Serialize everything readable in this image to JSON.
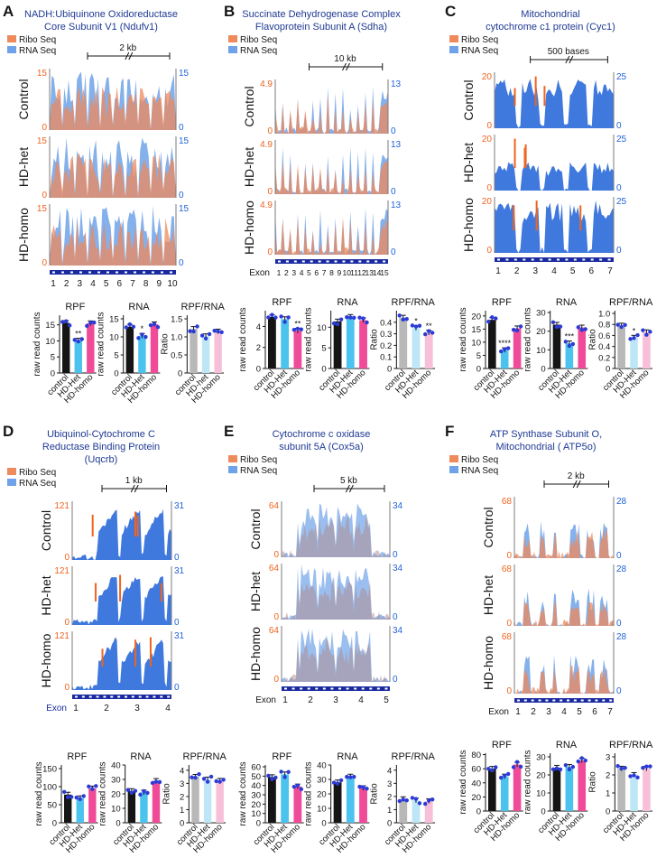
{
  "legend": {
    "ribo": "Ribo Seq",
    "rna": "RNA Seq"
  },
  "colors": {
    "ribo": "#ee8a5c",
    "rna": "#6fa2e8",
    "rna_dark": "#1f62d8",
    "ribo_dark": "#ef6420",
    "title": "#1f3a93",
    "black": "#151515",
    "gray": "#7b7b7b",
    "cyan": "#4cc2ef",
    "pink": "#f04b98",
    "lightpink": "#f7bfd8",
    "lightcyan": "#bde7f7",
    "silver": "#b8b8b8",
    "dot": "#2b3bd6",
    "exon": "#1a2aa0"
  },
  "axis_labels": {
    "raw": "raw read counts",
    "ratio": "Ratio",
    "exon": "Exon"
  },
  "panels": [
    {
      "letter": "A",
      "title": [
        "NADH:Ubiquinone Oxidoreductase",
        "Core Subunit V1  (Ndufv1)"
      ],
      "scale": "2 kb",
      "conditions": [
        "Control",
        "HD-het",
        "HD-homo"
      ],
      "left_axis": {
        "top": "15",
        "bottom": "0"
      },
      "right_axis": {
        "top": "15",
        "bottom": "0"
      },
      "exons": [
        "1",
        "2",
        "3",
        "4",
        "5",
        "6",
        "7",
        "8",
        "9",
        "10"
      ],
      "track_style": "spiky-overlap",
      "bars": [
        {
          "title": "RPF",
          "ylabel": "raw read counts",
          "ticks": [
            "0",
            "5",
            "10",
            "15"
          ],
          "ymax": 18,
          "categories": [
            "control",
            "HD-Het",
            "HD-homo"
          ],
          "values": [
            15.6,
            10.1,
            15.5
          ],
          "sig": [
            "",
            "**",
            ""
          ],
          "colorset": "vivid"
        },
        {
          "title": "RNA",
          "ylabel": "raw read counts",
          "ticks": [
            "0",
            "5",
            "10",
            "15"
          ],
          "ymax": 16,
          "categories": [
            "control",
            "HD-Het",
            "HD-homo"
          ],
          "values": [
            12.8,
            10.3,
            13.5
          ],
          "sig": [
            "",
            "*",
            ""
          ],
          "colorset": "vivid"
        },
        {
          "title": "RPF/RNA",
          "ylabel": "Ratio",
          "ticks": [
            "0",
            "0.5",
            "1.0",
            "1.5"
          ],
          "ymax": 1.6,
          "categories": [
            "control",
            "HD-het",
            "HD-homo"
          ],
          "values": [
            1.22,
            1.02,
            1.15
          ],
          "sig": [
            "",
            "",
            ""
          ],
          "colorset": "pastel"
        }
      ]
    },
    {
      "letter": "B",
      "title": [
        "Succinate Dehydrogenase Complex",
        "Flavoprotein Subunit A (Sdha)"
      ],
      "scale": "10 kb",
      "conditions": [
        "Control",
        "HD-het",
        "HD-homo"
      ],
      "left_axis": {
        "top": "4.9",
        "bottom": "0"
      },
      "right_axis": {
        "top": "13",
        "bottom": "0"
      },
      "exons": [
        "1",
        "2",
        "3",
        "4",
        "5",
        "6",
        "7",
        "8",
        "9",
        "10",
        "11",
        "12",
        "13",
        "14",
        "15"
      ],
      "track_style": "thin-lines",
      "bars": [
        {
          "title": "RPF",
          "ylabel": "raw read counts",
          "ticks": [
            "0",
            "2",
            "4"
          ],
          "ymax": 5.5,
          "categories": [
            "control",
            "HD-Het",
            "HD-homo"
          ],
          "values": [
            4.9,
            4.7,
            3.6
          ],
          "sig": [
            "",
            "",
            "**"
          ],
          "colorset": "vivid"
        },
        {
          "title": "RNA",
          "ylabel": "raw read counts",
          "ticks": [
            "0",
            "5",
            "10"
          ],
          "ymax": 14,
          "categories": [
            "control",
            "HD-Het",
            "HD-homo"
          ],
          "values": [
            11.4,
            12.5,
            11.7
          ],
          "sig": [
            "",
            "",
            ""
          ],
          "colorset": "vivid"
        },
        {
          "title": "RPF/RNA",
          "ylabel": "Ratio",
          "ticks": [
            "0",
            "0.1",
            "0.2",
            "0.3",
            "0.4"
          ],
          "ymax": 0.5,
          "categories": [
            "control",
            "HD-Het",
            "HD-homo"
          ],
          "values": [
            0.44,
            0.35,
            0.31
          ],
          "sig": [
            "",
            "*",
            "**"
          ],
          "colorset": "pastel"
        }
      ]
    },
    {
      "letter": "C",
      "title": [
        "Mitochondrial",
        "cytochrome c1 protein (Cyc1)"
      ],
      "scale": "500 bases",
      "conditions": [
        "Control",
        "HD-het",
        "HD-homo"
      ],
      "left_axis": {
        "top": "20",
        "bottom": "0"
      },
      "right_axis": {
        "top": "25",
        "bottom": "0"
      },
      "exons": [
        "1",
        "2",
        "3",
        "4",
        "5",
        "6",
        "7"
      ],
      "track_style": "dense-blocks",
      "bars": [
        {
          "title": "RPF",
          "ylabel": "raw read counts",
          "ticks": [
            "0",
            "5",
            "10",
            "15",
            "20"
          ],
          "ymax": 22,
          "categories": [
            "control",
            "HD-Het",
            "HD-homo"
          ],
          "values": [
            18.5,
            7.0,
            15.3
          ],
          "sig": [
            "",
            "****",
            ""
          ],
          "colorset": "vivid"
        },
        {
          "title": "RNA",
          "ylabel": "raw read counts",
          "ticks": [
            "0",
            "10",
            "20",
            "30"
          ],
          "ymax": 31,
          "categories": [
            "control",
            "HD-Het",
            "HD-homo"
          ],
          "values": [
            23.5,
            13.5,
            22.0
          ],
          "sig": [
            "",
            "***",
            ""
          ],
          "colorset": "vivid"
        },
        {
          "title": "RPF/RNA",
          "ylabel": "Ratio",
          "ticks": [
            "0",
            "0.2",
            "0.4",
            "0.6",
            "0.8",
            "1.0"
          ],
          "ymax": 1.05,
          "categories": [
            "control",
            "HD-Het",
            "HD-homo"
          ],
          "values": [
            0.78,
            0.56,
            0.66
          ],
          "sig": [
            "",
            "*",
            ""
          ],
          "colorset": "pastel"
        }
      ]
    },
    {
      "letter": "D",
      "title": [
        "Ubiquinol-Cytochrome C",
        "Reductase Binding Protein",
        "(Uqcrb)"
      ],
      "scale": "1 kb",
      "conditions": [
        "Control",
        "HD-het",
        "HD-homo"
      ],
      "left_axis": {
        "top": "121",
        "bottom": "0"
      },
      "right_axis": {
        "top": "31",
        "bottom": "0"
      },
      "exons": [
        "1",
        "2",
        "3",
        "4"
      ],
      "track_style": "few-blocks",
      "bars": [
        {
          "title": "RPF",
          "ylabel": "raw read counts",
          "ticks": [
            "0",
            "50",
            "100",
            "150"
          ],
          "ymax": 160,
          "categories": [
            "control",
            "HD-Het",
            "HD-homo"
          ],
          "values": [
            78,
            68,
            95
          ],
          "sig": [
            "",
            "",
            ""
          ],
          "colorset": "vivid"
        },
        {
          "title": "RNA",
          "ylabel": "raw read counts",
          "ticks": [
            "0",
            "10",
            "20",
            "30",
            "40"
          ],
          "ymax": 40,
          "categories": [
            "control",
            "HD-Het",
            "HD-homo"
          ],
          "values": [
            22,
            21,
            29
          ],
          "sig": [
            "",
            "",
            ""
          ],
          "colorset": "vivid"
        },
        {
          "title": "RPF/RNA",
          "ylabel": "Ratio",
          "ticks": [
            "0",
            "1",
            "2",
            "3",
            "4"
          ],
          "ymax": 4.4,
          "categories": [
            "control",
            "HD-Het",
            "HD-homo"
          ],
          "values": [
            3.5,
            3.3,
            3.2
          ],
          "sig": [
            "",
            "",
            ""
          ],
          "colorset": "pastel"
        }
      ]
    },
    {
      "letter": "E",
      "title": [
        "Cytochrome c oxidase",
        "subunit 5A (Cox5a)"
      ],
      "scale": "5 kb",
      "conditions": [
        "Control",
        "HD-het",
        "HD-homo"
      ],
      "left_axis": {
        "top": "64",
        "bottom": "0"
      },
      "right_axis": {
        "top": "34",
        "bottom": "0"
      },
      "exons": [
        "1",
        "2",
        "3",
        "4",
        "5"
      ],
      "track_style": "muted-overlap",
      "bars": [
        {
          "title": "RPF",
          "ylabel": "raw read counts",
          "ticks": [
            "0",
            "10",
            "20",
            "30",
            "40",
            "50",
            "60"
          ],
          "ymax": 62,
          "categories": [
            "control",
            "HD-Het",
            "HD-homo"
          ],
          "values": [
            49,
            52,
            39
          ],
          "sig": [
            "",
            "",
            ""
          ],
          "colorset": "vivid"
        },
        {
          "title": "RNA",
          "ylabel": "raw read counts",
          "ticks": [
            "0",
            "10",
            "20",
            "30",
            "40"
          ],
          "ymax": 40,
          "categories": [
            "control",
            "HD-Het",
            "HD-homo"
          ],
          "values": [
            28,
            32,
            24
          ],
          "sig": [
            "",
            "",
            ""
          ],
          "colorset": "vivid"
        },
        {
          "title": "RPF/RNA",
          "ylabel": "Ratio",
          "ticks": [
            "0",
            "1",
            "2",
            "3",
            "4"
          ],
          "ymax": 4.4,
          "categories": [
            "control",
            "HD-Het",
            "HD-homo"
          ],
          "values": [
            1.8,
            1.7,
            1.65
          ],
          "sig": [
            "",
            "",
            ""
          ],
          "colorset": "pastel"
        }
      ]
    },
    {
      "letter": "F",
      "title": [
        "ATP Synthase Subunit O,",
        "Mitochondrial ( ATP5o)"
      ],
      "scale": "2 kb",
      "conditions": [
        "Control",
        "HD-het",
        "HD-homo"
      ],
      "left_axis": {
        "top": "68",
        "bottom": "0"
      },
      "right_axis": {
        "top": "28",
        "bottom": "0"
      },
      "exons": [
        "1",
        "2",
        "3",
        "4",
        "5",
        "6",
        "7"
      ],
      "track_style": "sparse",
      "bars": [
        {
          "title": "RPF",
          "ylabel": "raw read counts",
          "ticks": [
            "0",
            "20",
            "40",
            "60",
            "80"
          ],
          "ymax": 82,
          "categories": [
            "control",
            "HD-Het",
            "HD-homo"
          ],
          "values": [
            60,
            49,
            66
          ],
          "sig": [
            "",
            "",
            ""
          ],
          "colorset": "vivid"
        },
        {
          "title": "RNA",
          "ylabel": "raw read counts",
          "ticks": [
            "0",
            "10",
            "20",
            "30"
          ],
          "ymax": 32,
          "categories": [
            "control",
            "HD-Het",
            "HD-homo"
          ],
          "values": [
            24,
            24.5,
            28
          ],
          "sig": [
            "",
            "",
            ""
          ],
          "colorset": "vivid"
        },
        {
          "title": "RPF/RNA",
          "ylabel": "Ratio",
          "ticks": [
            "0",
            "1",
            "2",
            "3"
          ],
          "ymax": 3.2,
          "categories": [
            "control",
            "HD-Het",
            "HD-homo"
          ],
          "values": [
            2.35,
            2.0,
            2.35
          ],
          "sig": [
            "",
            "",
            ""
          ],
          "colorset": "pastel"
        }
      ]
    }
  ]
}
